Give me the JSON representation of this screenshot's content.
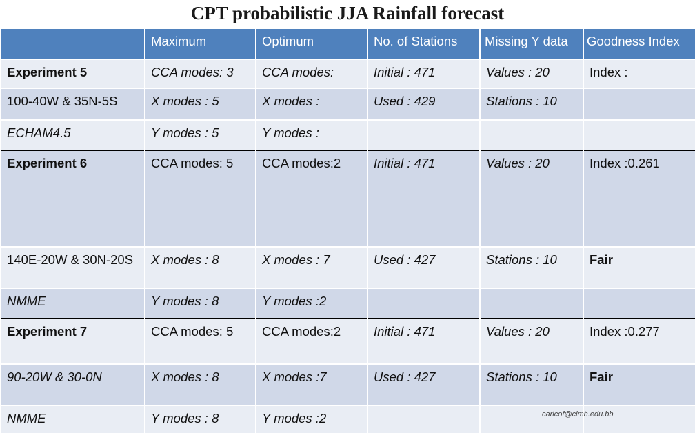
{
  "title": "CPT probabilistic JJA Rainfall forecast",
  "headers": [
    "",
    "Maximum",
    "Optimum",
    "No. of Stations",
    "Missing Y data",
    "Goodness Index"
  ],
  "experiments": [
    {
      "rows": [
        [
          "Experiment 5",
          "CCA modes: 3",
          "CCA modes:",
          "Initial : 471",
          "Values : 20",
          "Index :"
        ],
        [
          "100-40W & 35N-5S",
          "X modes : 5",
          "X modes :",
          "Used : 429",
          "Stations : 10",
          ""
        ],
        [
          "ECHAM4.5",
          "Y modes : 5",
          "Y modes :",
          "",
          "",
          ""
        ]
      ]
    },
    {
      "rows": [
        [
          "Experiment 6",
          "CCA modes: 5",
          "CCA modes:2",
          "Initial : 471",
          "Values : 20",
          "Index :0.261"
        ],
        [
          "140E-20W & 30N-20S",
          "X modes : 8",
          "X modes : 7",
          "Used : 427",
          "Stations : 10",
          "Fair"
        ],
        [
          "NMME",
          "Y modes : 8",
          "Y modes :2",
          "",
          "",
          ""
        ]
      ]
    },
    {
      "rows": [
        [
          "Experiment 7",
          "CCA modes: 5",
          "CCA modes:2",
          "Initial : 471",
          "Values : 20",
          "Index :0.277"
        ],
        [
          "90-20W & 30-0N",
          "X modes : 8",
          "X modes :7",
          "Used : 427",
          "Stations : 10",
          "Fair"
        ],
        [
          "NMME",
          "Y modes : 8",
          "Y modes :2",
          "",
          "",
          ""
        ]
      ]
    }
  ],
  "footer_email": "caricof@cimh.edu.bb"
}
